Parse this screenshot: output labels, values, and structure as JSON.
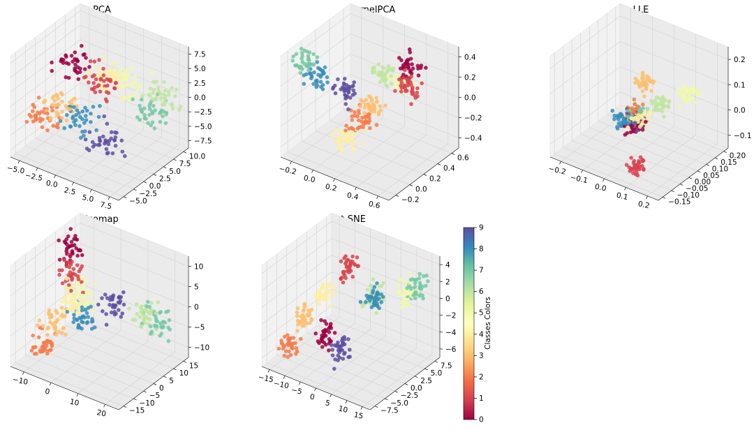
{
  "colormap": {
    "name": "Spectral",
    "stops": [
      "#9e0142",
      "#d53e4f",
      "#f46d43",
      "#fdae61",
      "#fee08b",
      "#ffffbf",
      "#e6f598",
      "#abdda4",
      "#66c2a5",
      "#3288bd",
      "#5e4fa2"
    ]
  },
  "chart_data": [
    {
      "type": "scatter",
      "title": "PCA",
      "x_ticks": [
        "−5.0",
        "−2.5",
        "0.0",
        "2.5",
        "5.0",
        "7.5"
      ],
      "y_ticks": [
        "−5.0",
        "−2.5",
        "0.0",
        "2.5",
        "5.0",
        "7.5",
        "10.0"
      ],
      "z_ticks": [
        "−7.5",
        "−5.0",
        "−2.5",
        "0.0",
        "2.5",
        "5.0",
        "7.5"
      ],
      "xlim": [
        -6.5,
        8.5
      ],
      "ylim": [
        -6,
        11
      ],
      "zlim": [
        -8.5,
        8.5
      ],
      "clusters": [
        {
          "class": 0,
          "center": [
            -2.5,
            2,
            5
          ]
        },
        {
          "class": 1,
          "center": [
            1,
            3,
            3
          ]
        },
        {
          "class": 2,
          "center": [
            -4.5,
            -1,
            -3
          ]
        },
        {
          "class": 3,
          "center": [
            -3,
            0,
            -1
          ]
        },
        {
          "class": 4,
          "center": [
            0,
            6,
            2
          ]
        },
        {
          "class": 5,
          "center": [
            2,
            8,
            1
          ]
        },
        {
          "class": 6,
          "center": [
            6,
            9,
            0
          ]
        },
        {
          "class": 7,
          "center": [
            5.5,
            7,
            -2
          ]
        },
        {
          "class": 8,
          "center": [
            -1,
            1,
            -3
          ]
        },
        {
          "class": 9,
          "center": [
            3.5,
            0,
            -4
          ]
        }
      ],
      "spread": 1.6
    },
    {
      "type": "scatter",
      "title": "KernelPCA",
      "x_ticks": [
        "−0.2",
        "0.0",
        "0.2",
        "0.4",
        "0.6"
      ],
      "y_ticks": [
        "−0.2",
        "0.0",
        "0.2",
        "0.4",
        "0.6"
      ],
      "z_ticks": [
        "−0.4",
        "−0.2",
        "0.0",
        "0.2",
        "0.4"
      ],
      "xlim": [
        -0.3,
        0.7
      ],
      "ylim": [
        -0.3,
        0.7
      ],
      "zlim": [
        -0.45,
        0.45
      ],
      "clusters": [
        {
          "class": 0,
          "center": [
            0.3,
            0.6,
            0.15
          ]
        },
        {
          "class": 1,
          "center": [
            0.4,
            0.45,
            0.1
          ]
        },
        {
          "class": 2,
          "center": [
            0.1,
            0.2,
            -0.2
          ]
        },
        {
          "class": 3,
          "center": [
            0.15,
            0.3,
            -0.1
          ]
        },
        {
          "class": 4,
          "center": [
            0.05,
            0.1,
            -0.35
          ]
        },
        {
          "class": 5,
          "center": [
            0.25,
            0.6,
            0.0
          ]
        },
        {
          "class": 6,
          "center": [
            0.15,
            0.5,
            0.1
          ]
        },
        {
          "class": 7,
          "center": [
            -0.2,
            -0.1,
            0.35
          ]
        },
        {
          "class": 8,
          "center": [
            -0.15,
            0.0,
            0.2
          ]
        },
        {
          "class": 9,
          "center": [
            0.0,
            0.15,
            0.05
          ]
        }
      ],
      "spread": 0.07
    },
    {
      "type": "scatter",
      "title": "LLE",
      "x_ticks": [
        "−0.2",
        "−0.1",
        "0.0",
        "0.1",
        "0.2"
      ],
      "y_ticks": [
        "−0.15",
        "−0.10",
        "−0.05",
        "0.00",
        "0.05",
        "0.10",
        "0.15",
        "0.20"
      ],
      "z_ticks": [
        "−0.1",
        "0.0",
        "0.1",
        "0.2"
      ],
      "xlim": [
        -0.25,
        0.25
      ],
      "ylim": [
        -0.18,
        0.22
      ],
      "zlim": [
        -0.18,
        0.28
      ],
      "clusters": [
        {
          "class": 0,
          "center": [
            0.0,
            0.0,
            -0.05
          ]
        },
        {
          "class": 1,
          "center": [
            0.1,
            -0.12,
            -0.12
          ]
        },
        {
          "class": 2,
          "center": [
            -0.02,
            0.02,
            0.0
          ]
        },
        {
          "class": 3,
          "center": [
            0.0,
            0.05,
            0.12
          ]
        },
        {
          "class": 4,
          "center": [
            0.02,
            0.0,
            0.0
          ]
        },
        {
          "class": 5,
          "center": [
            0.12,
            0.15,
            0.05
          ]
        },
        {
          "class": 6,
          "center": [
            0.05,
            0.08,
            0.02
          ]
        },
        {
          "class": 7,
          "center": [
            0.0,
            0.0,
            0.0
          ]
        },
        {
          "class": 8,
          "center": [
            -0.05,
            -0.02,
            -0.03
          ]
        },
        {
          "class": 9,
          "center": [
            0.0,
            0.0,
            -0.02
          ]
        }
      ],
      "spread": 0.025
    },
    {
      "type": "scatter",
      "title": "Isomap",
      "x_ticks": [
        "−10",
        "0",
        "10",
        "20"
      ],
      "y_ticks": [
        "−15",
        "−10",
        "−5",
        "0",
        "5",
        "10",
        "15"
      ],
      "z_ticks": [
        "−10",
        "−5",
        "0",
        "5",
        "10"
      ],
      "xlim": [
        -15,
        22
      ],
      "ylim": [
        -17,
        17
      ],
      "zlim": [
        -12,
        13
      ],
      "clusters": [
        {
          "class": 0,
          "center": [
            -10,
            5,
            10
          ]
        },
        {
          "class": 1,
          "center": [
            -8,
            2,
            6
          ]
        },
        {
          "class": 2,
          "center": [
            -12,
            -6,
            -10
          ]
        },
        {
          "class": 3,
          "center": [
            -10,
            -3,
            -5
          ]
        },
        {
          "class": 4,
          "center": [
            -6,
            0,
            0
          ]
        },
        {
          "class": 5,
          "center": [
            -4,
            2,
            2
          ]
        },
        {
          "class": 6,
          "center": [
            12,
            10,
            -2
          ]
        },
        {
          "class": 7,
          "center": [
            15,
            12,
            -4
          ]
        },
        {
          "class": 8,
          "center": [
            -2,
            0,
            -3
          ]
        },
        {
          "class": 9,
          "center": [
            4,
            6,
            0
          ]
        }
      ],
      "spread": 2.6
    },
    {
      "type": "scatter",
      "title": "t-SNE",
      "x_ticks": [
        "−15",
        "−10",
        "−5",
        "0",
        "5",
        "10",
        "15"
      ],
      "y_ticks": [
        "−7.5",
        "−5.0",
        "−2.5",
        "0.0",
        "2.5",
        "5.0",
        "7.5"
      ],
      "z_ticks": [
        "−6",
        "−4",
        "−2",
        "0",
        "2",
        "4"
      ],
      "xlim": [
        -17,
        17
      ],
      "ylim": [
        -9,
        9
      ],
      "zlim": [
        -7.5,
        6
      ],
      "clusters": [
        {
          "class": 0,
          "center": [
            -5,
            -2,
            -4
          ]
        },
        {
          "class": 1,
          "center": [
            -3,
            2,
            4
          ]
        },
        {
          "class": 2,
          "center": [
            -12,
            -6,
            -5
          ]
        },
        {
          "class": 3,
          "center": [
            -10,
            -4,
            -2
          ]
        },
        {
          "class": 4,
          "center": [
            -8,
            0,
            0
          ]
        },
        {
          "class": 5,
          "center": [
            10,
            6,
            1
          ]
        },
        {
          "class": 6,
          "center": [
            2,
            4,
            0
          ]
        },
        {
          "class": 7,
          "center": [
            12,
            7,
            2
          ]
        },
        {
          "class": 8,
          "center": [
            5,
            2,
            1
          ]
        },
        {
          "class": 9,
          "center": [
            2,
            -4,
            -4
          ]
        }
      ],
      "spread": 1.3
    }
  ],
  "colorbar": {
    "label": "Classes Colors",
    "ticks": [
      "0",
      "1",
      "2",
      "3",
      "4",
      "5",
      "6",
      "7",
      "8",
      "9"
    ],
    "range": [
      0,
      9
    ]
  }
}
